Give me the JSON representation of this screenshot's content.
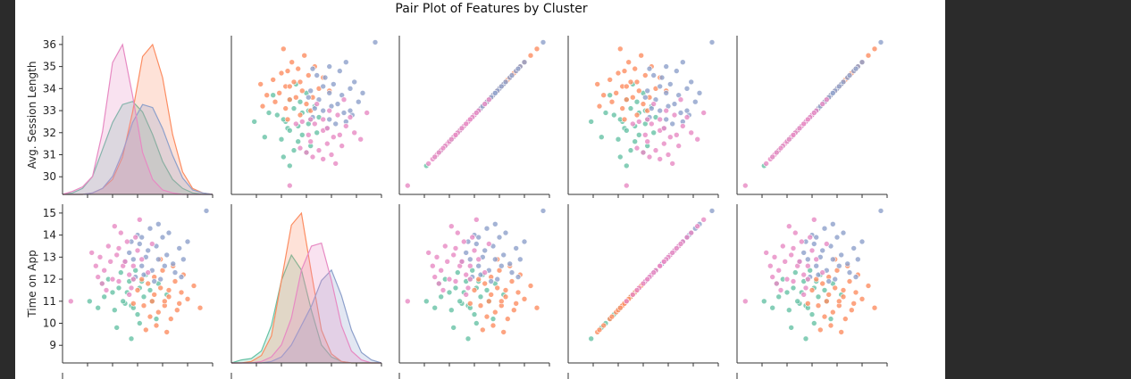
{
  "chart_data": {
    "type": "scatter",
    "subtype": "pair-plot",
    "title": "Pair Plot of Features by Cluster",
    "variables": [
      "Avg. Session Length",
      "Time on App"
    ],
    "hue": "Cluster",
    "legend": "none",
    "grid": false,
    "axes": [
      {
        "label": "Avg. Session Length",
        "range": [
          29.2,
          36.4
        ],
        "ticks": [
          30,
          31,
          32,
          33,
          34,
          35,
          36
        ]
      },
      {
        "label": "Time on App",
        "range": [
          8.2,
          15.4
        ],
        "ticks": [
          9,
          10,
          11,
          12,
          13,
          14,
          15
        ]
      }
    ],
    "series": [
      {
        "color": "#66c2a5",
        "points": [
          {
            "x": 32.3,
            "y": 11.4
          },
          {
            "x": 33.1,
            "y": 11.2
          },
          {
            "x": 32.6,
            "y": 12.0
          },
          {
            "x": 32.8,
            "y": 10.4
          },
          {
            "x": 31.9,
            "y": 11.6
          },
          {
            "x": 33.0,
            "y": 11.9
          },
          {
            "x": 32.2,
            "y": 10.9
          },
          {
            "x": 31.6,
            "y": 11.4
          },
          {
            "x": 33.4,
            "y": 11.5
          },
          {
            "x": 32.5,
            "y": 10.8
          },
          {
            "x": 32.0,
            "y": 12.3
          },
          {
            "x": 33.5,
            "y": 11.0
          },
          {
            "x": 32.9,
            "y": 10.0
          },
          {
            "x": 32.4,
            "y": 11.9
          },
          {
            "x": 31.7,
            "y": 10.6
          },
          {
            "x": 30.9,
            "y": 10.7
          },
          {
            "x": 31.2,
            "y": 11.2
          },
          {
            "x": 33.7,
            "y": 10.2
          },
          {
            "x": 32.7,
            "y": 12.4
          },
          {
            "x": 32.1,
            "y": 11.0
          },
          {
            "x": 31.4,
            "y": 12.0
          },
          {
            "x": 33.8,
            "y": 11.8
          },
          {
            "x": 32.5,
            "y": 9.3
          },
          {
            "x": 31.1,
            "y": 11.8
          },
          {
            "x": 34.2,
            "y": 11.3
          },
          {
            "x": 32.6,
            "y": 10.7
          },
          {
            "x": 33.2,
            "y": 12.2
          },
          {
            "x": 31.8,
            "y": 9.8
          },
          {
            "x": 30.5,
            "y": 11.0
          },
          {
            "x": 32.9,
            "y": 11.6
          }
        ]
      },
      {
        "color": "#fc8d62",
        "points": [
          {
            "x": 33.9,
            "y": 11.6
          },
          {
            "x": 34.3,
            "y": 11.2
          },
          {
            "x": 33.5,
            "y": 11.0
          },
          {
            "x": 34.6,
            "y": 11.9
          },
          {
            "x": 33.8,
            "y": 10.5
          },
          {
            "x": 34.0,
            "y": 12.4
          },
          {
            "x": 33.3,
            "y": 11.8
          },
          {
            "x": 34.8,
            "y": 10.9
          },
          {
            "x": 33.6,
            "y": 12.1
          },
          {
            "x": 34.4,
            "y": 10.2
          },
          {
            "x": 33.1,
            "y": 10.8
          },
          {
            "x": 34.9,
            "y": 11.4
          },
          {
            "x": 33.7,
            "y": 9.9
          },
          {
            "x": 35.2,
            "y": 11.1
          },
          {
            "x": 34.1,
            "y": 10.8
          },
          {
            "x": 32.8,
            "y": 11.5
          },
          {
            "x": 34.5,
            "y": 12.6
          },
          {
            "x": 33.4,
            "y": 10.3
          },
          {
            "x": 35.5,
            "y": 11.7
          },
          {
            "x": 34.2,
            "y": 9.6
          },
          {
            "x": 33.0,
            "y": 12.0
          },
          {
            "x": 34.7,
            "y": 10.6
          },
          {
            "x": 33.9,
            "y": 12.9
          },
          {
            "x": 35.8,
            "y": 10.7
          },
          {
            "x": 32.6,
            "y": 10.9
          },
          {
            "x": 34.3,
            "y": 11.5
          },
          {
            "x": 33.6,
            "y": 11.3
          },
          {
            "x": 35.0,
            "y": 12.2
          },
          {
            "x": 34.1,
            "y": 11.0
          },
          {
            "x": 33.2,
            "y": 9.7
          }
        ]
      },
      {
        "color": "#8da0cb",
        "points": [
          {
            "x": 33.3,
            "y": 13.3
          },
          {
            "x": 33.8,
            "y": 12.9
          },
          {
            "x": 32.9,
            "y": 13.6
          },
          {
            "x": 34.2,
            "y": 13.1
          },
          {
            "x": 33.5,
            "y": 12.4
          },
          {
            "x": 32.6,
            "y": 12.9
          },
          {
            "x": 34.0,
            "y": 13.9
          },
          {
            "x": 33.1,
            "y": 12.2
          },
          {
            "x": 34.5,
            "y": 12.7
          },
          {
            "x": 32.8,
            "y": 14.0
          },
          {
            "x": 33.7,
            "y": 13.5
          },
          {
            "x": 33.0,
            "y": 12.6
          },
          {
            "x": 34.8,
            "y": 13.4
          },
          {
            "x": 32.4,
            "y": 13.2
          },
          {
            "x": 33.9,
            "y": 12.0
          },
          {
            "x": 33.4,
            "y": 14.3
          },
          {
            "x": 35.0,
            "y": 12.9
          },
          {
            "x": 32.7,
            "y": 12.1
          },
          {
            "x": 34.3,
            "y": 14.1
          },
          {
            "x": 33.2,
            "y": 13.0
          },
          {
            "x": 34.6,
            "y": 12.3
          },
          {
            "x": 32.5,
            "y": 13.7
          },
          {
            "x": 35.2,
            "y": 13.7
          },
          {
            "x": 33.6,
            "y": 11.9
          },
          {
            "x": 36.1,
            "y": 15.1
          },
          {
            "x": 33.0,
            "y": 13.9
          },
          {
            "x": 34.1,
            "y": 12.6
          },
          {
            "x": 32.2,
            "y": 12.8
          },
          {
            "x": 33.8,
            "y": 14.5
          },
          {
            "x": 34.9,
            "y": 12.1
          }
        ]
      },
      {
        "color": "#e78ac3",
        "points": [
          {
            "x": 32.1,
            "y": 12.6
          },
          {
            "x": 31.8,
            "y": 13.1
          },
          {
            "x": 32.4,
            "y": 12.2
          },
          {
            "x": 31.5,
            "y": 12.8
          },
          {
            "x": 32.8,
            "y": 13.3
          },
          {
            "x": 31.2,
            "y": 12.4
          },
          {
            "x": 32.3,
            "y": 13.7
          },
          {
            "x": 31.9,
            "y": 11.9
          },
          {
            "x": 32.6,
            "y": 12.6
          },
          {
            "x": 31.0,
            "y": 13.0
          },
          {
            "x": 32.0,
            "y": 14.1
          },
          {
            "x": 31.6,
            "y": 12.0
          },
          {
            "x": 33.0,
            "y": 12.9
          },
          {
            "x": 30.8,
            "y": 12.6
          },
          {
            "x": 32.5,
            "y": 11.6
          },
          {
            "x": 31.4,
            "y": 13.5
          },
          {
            "x": 32.9,
            "y": 14.7
          },
          {
            "x": 31.1,
            "y": 11.8
          },
          {
            "x": 32.2,
            "y": 12.8
          },
          {
            "x": 30.6,
            "y": 13.2
          },
          {
            "x": 33.3,
            "y": 12.3
          },
          {
            "x": 31.7,
            "y": 14.4
          },
          {
            "x": 29.6,
            "y": 11.0
          },
          {
            "x": 32.7,
            "y": 13.9
          },
          {
            "x": 31.3,
            "y": 11.5
          },
          {
            "x": 33.5,
            "y": 13.6
          },
          {
            "x": 30.9,
            "y": 12.1
          },
          {
            "x": 32.4,
            "y": 11.3
          },
          {
            "x": 31.9,
            "y": 13.4
          },
          {
            "x": 32.6,
            "y": 12.0
          }
        ]
      }
    ],
    "diagonal": {
      "type": "kde",
      "panels": [
        {
          "x": [
            29.0,
            29.5,
            30.0,
            30.5,
            31.0,
            31.5,
            32.0,
            32.5,
            33.0,
            33.5,
            34.0,
            34.5,
            35.0,
            35.5,
            36.0,
            36.5
          ],
          "series": [
            {
              "color": "#66c2a5",
              "density": [
                0.0,
                0.01,
                0.04,
                0.12,
                0.3,
                0.48,
                0.6,
                0.62,
                0.55,
                0.4,
                0.22,
                0.1,
                0.04,
                0.01,
                0.0,
                0.0
              ]
            },
            {
              "color": "#fc8d62",
              "density": [
                0.0,
                0.0,
                0.0,
                0.01,
                0.04,
                0.1,
                0.25,
                0.55,
                0.92,
                1.0,
                0.78,
                0.4,
                0.15,
                0.04,
                0.01,
                0.0
              ]
            },
            {
              "color": "#8da0cb",
              "density": [
                0.0,
                0.0,
                0.0,
                0.01,
                0.04,
                0.12,
                0.28,
                0.48,
                0.6,
                0.58,
                0.44,
                0.26,
                0.11,
                0.03,
                0.01,
                0.0
              ]
            },
            {
              "color": "#e78ac3",
              "density": [
                0.0,
                0.02,
                0.05,
                0.12,
                0.42,
                0.88,
                1.0,
                0.66,
                0.28,
                0.1,
                0.03,
                0.01,
                0.0,
                0.0,
                0.0,
                0.0
              ]
            }
          ]
        },
        {
          "x": [
            8.0,
            8.5,
            9.0,
            9.5,
            10.0,
            10.5,
            11.0,
            11.5,
            12.0,
            12.5,
            13.0,
            13.5,
            14.0,
            14.5,
            15.0,
            15.5
          ],
          "series": [
            {
              "color": "#66c2a5",
              "density": [
                0.0,
                0.02,
                0.03,
                0.08,
                0.25,
                0.55,
                0.72,
                0.62,
                0.35,
                0.12,
                0.04,
                0.01,
                0.0,
                0.0,
                0.0,
                0.0
              ]
            },
            {
              "color": "#fc8d62",
              "density": [
                0.0,
                0.0,
                0.01,
                0.05,
                0.18,
                0.55,
                0.92,
                1.0,
                0.6,
                0.22,
                0.06,
                0.01,
                0.0,
                0.0,
                0.0,
                0.0
              ]
            },
            {
              "color": "#8da0cb",
              "density": [
                0.0,
                0.0,
                0.0,
                0.0,
                0.01,
                0.04,
                0.12,
                0.25,
                0.38,
                0.55,
                0.62,
                0.45,
                0.22,
                0.07,
                0.02,
                0.0
              ]
            },
            {
              "color": "#e78ac3",
              "density": [
                0.0,
                0.0,
                0.0,
                0.01,
                0.04,
                0.12,
                0.3,
                0.62,
                0.78,
                0.8,
                0.55,
                0.25,
                0.08,
                0.02,
                0.0,
                0.0
              ]
            }
          ]
        }
      ]
    }
  }
}
